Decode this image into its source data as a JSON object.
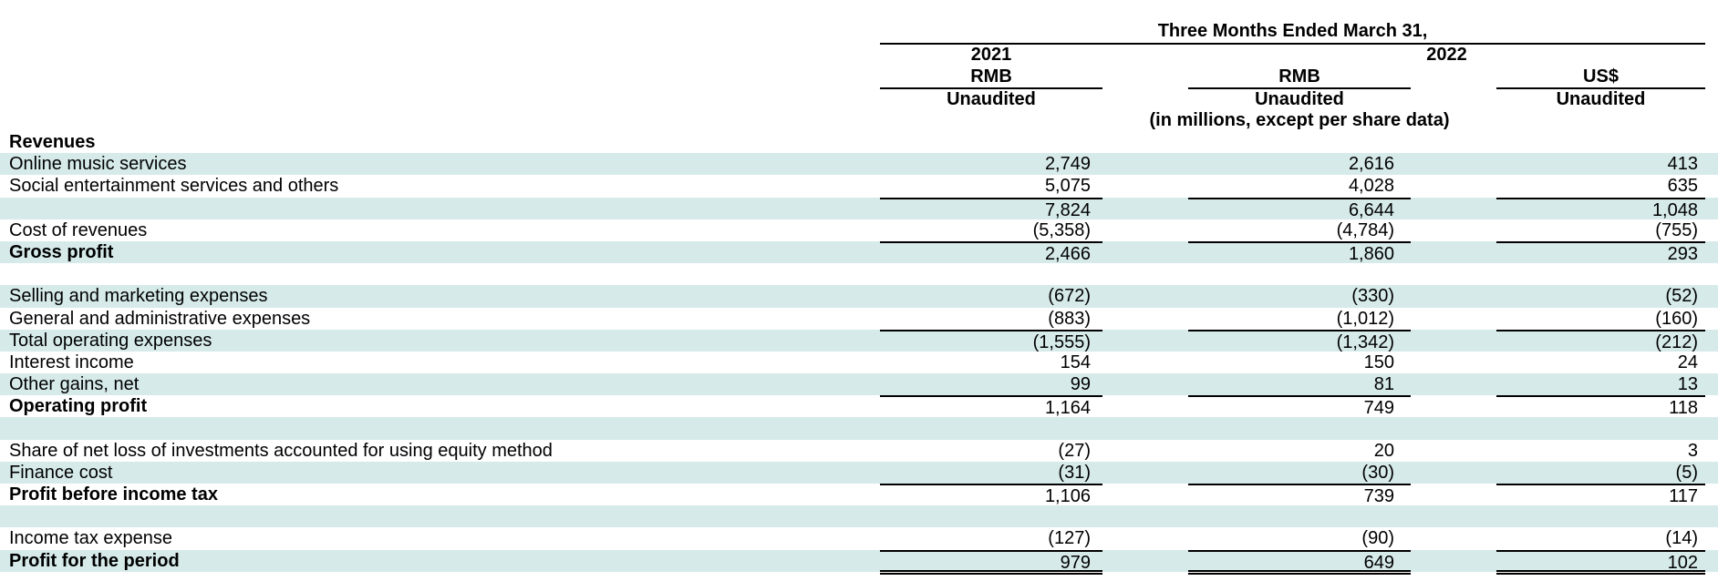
{
  "header": {
    "period": "Three Months Ended March 31,",
    "year_2021": "2021",
    "year_2022": "2022",
    "col1_currency": "RMB",
    "col1_status": "Unaudited",
    "col2_currency": "RMB",
    "col2_status": "Unaudited",
    "col2_note": "(in millions, except per share data)",
    "col3_currency": "US$",
    "col3_status": "Unaudited"
  },
  "rows": [
    {
      "label": "Revenues",
      "bold": true,
      "shade": false,
      "values": [
        "",
        "",
        ""
      ]
    },
    {
      "label": "Online music services",
      "shade": true,
      "values": [
        "2,749",
        "2,616",
        "413"
      ]
    },
    {
      "label": "Social entertainment services and others",
      "shade": false,
      "values": [
        "5,075",
        "4,028",
        "635"
      ]
    },
    {
      "label": "",
      "shade": true,
      "top_line": true,
      "values": [
        "7,824",
        "6,644",
        "1,048"
      ]
    },
    {
      "label": "Cost of revenues",
      "shade": false,
      "values": [
        "(5,358)",
        "(4,784)",
        "(755)"
      ]
    },
    {
      "label": "Gross profit",
      "bold": true,
      "shade": true,
      "top_line": true,
      "values": [
        "2,466",
        "1,860",
        "293"
      ]
    },
    {
      "label": "",
      "shade": false,
      "values": [
        "",
        "",
        ""
      ]
    },
    {
      "label": "Selling and marketing expenses",
      "shade": true,
      "values": [
        "(672)",
        "(330)",
        "(52)"
      ]
    },
    {
      "label": "General and administrative expenses",
      "shade": false,
      "values": [
        "(883)",
        "(1,012)",
        "(160)"
      ]
    },
    {
      "label": "Total operating expenses",
      "shade": true,
      "top_line": true,
      "values": [
        "(1,555)",
        "(1,342)",
        "(212)"
      ]
    },
    {
      "label": "Interest income",
      "shade": false,
      "values": [
        "154",
        "150",
        "24"
      ]
    },
    {
      "label": "Other gains, net",
      "shade": true,
      "values": [
        "99",
        "81",
        "13"
      ]
    },
    {
      "label": "Operating profit",
      "bold": true,
      "shade": false,
      "top_line": true,
      "values": [
        "1,164",
        "749",
        "118"
      ]
    },
    {
      "label": "",
      "shade": true,
      "values": [
        "",
        "",
        ""
      ]
    },
    {
      "label": "Share of net loss of investments accounted for using equity method",
      "shade": false,
      "values": [
        "(27)",
        "20",
        "3"
      ]
    },
    {
      "label": "Finance cost",
      "shade": true,
      "values": [
        "(31)",
        "(30)",
        "(5)"
      ]
    },
    {
      "label": "Profit before income tax",
      "bold": true,
      "shade": false,
      "top_line": true,
      "values": [
        "1,106",
        "739",
        "117"
      ]
    },
    {
      "label": "",
      "shade": true,
      "values": [
        "",
        "",
        ""
      ]
    },
    {
      "label": "Income tax expense",
      "shade": false,
      "values": [
        "(127)",
        "(90)",
        "(14)"
      ]
    },
    {
      "label": "Profit for the period",
      "bold": true,
      "shade": true,
      "top_line": true,
      "double_line": true,
      "values": [
        "979",
        "649",
        "102"
      ]
    }
  ]
}
